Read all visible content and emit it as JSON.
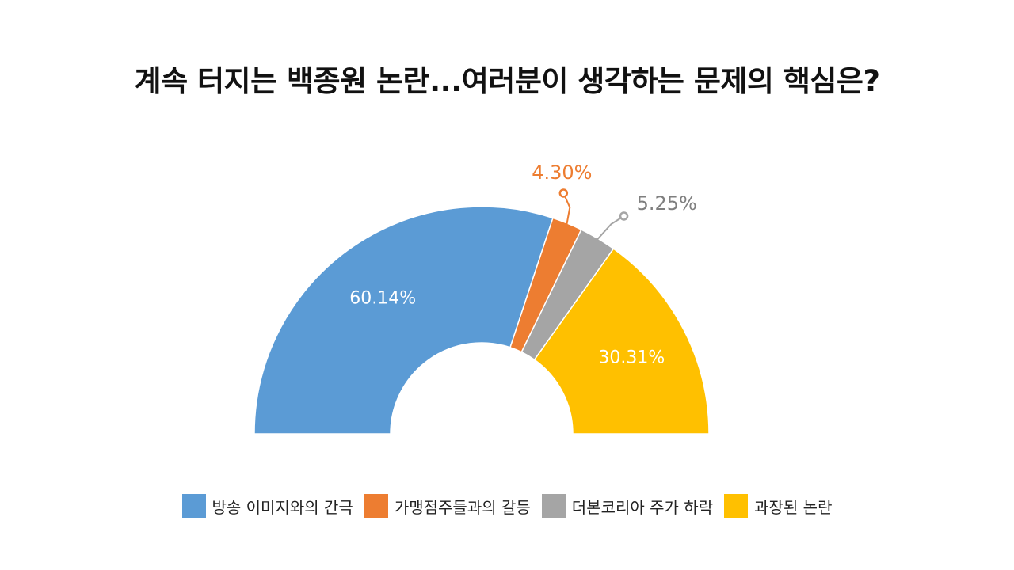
{
  "chart_data": {
    "type": "pie",
    "variant": "half-donut",
    "title": "계속 터지는 백종원 논란...여러분이 생각하는 문제의 핵심은?",
    "categories": [
      "방송 이미지와의 간극",
      "가맹점주들과의 갈등",
      "더본코리아 주가 하락",
      "과장된 논란"
    ],
    "values": [
      60.14,
      4.3,
      5.25,
      30.31
    ],
    "data_labels": [
      "60.14%",
      "4.30%",
      "5.25%",
      "30.31%"
    ],
    "colors": [
      "#5b9bd5",
      "#ed7d31",
      "#a5a5a5",
      "#ffc000"
    ],
    "legend_position": "bottom"
  }
}
